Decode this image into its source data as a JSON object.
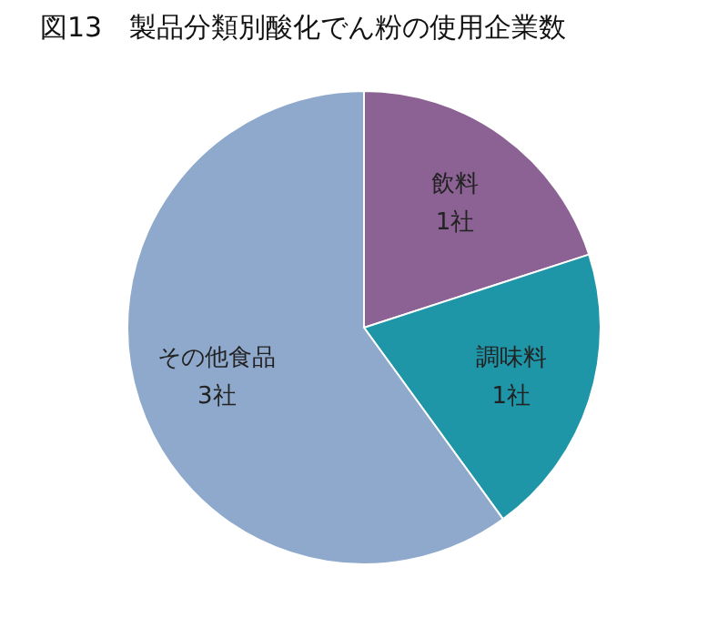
{
  "chart_data": {
    "type": "pie",
    "title": "図13　製品分類別酸化でん粉の使用企業数",
    "categories": [
      "飲料",
      "調味料",
      "その他食品"
    ],
    "values": [
      1,
      1,
      3
    ],
    "colors": [
      "#8b6293",
      "#1f96a8",
      "#8fa9cc"
    ],
    "value_labels": [
      "1社",
      "1社",
      "3社"
    ]
  }
}
